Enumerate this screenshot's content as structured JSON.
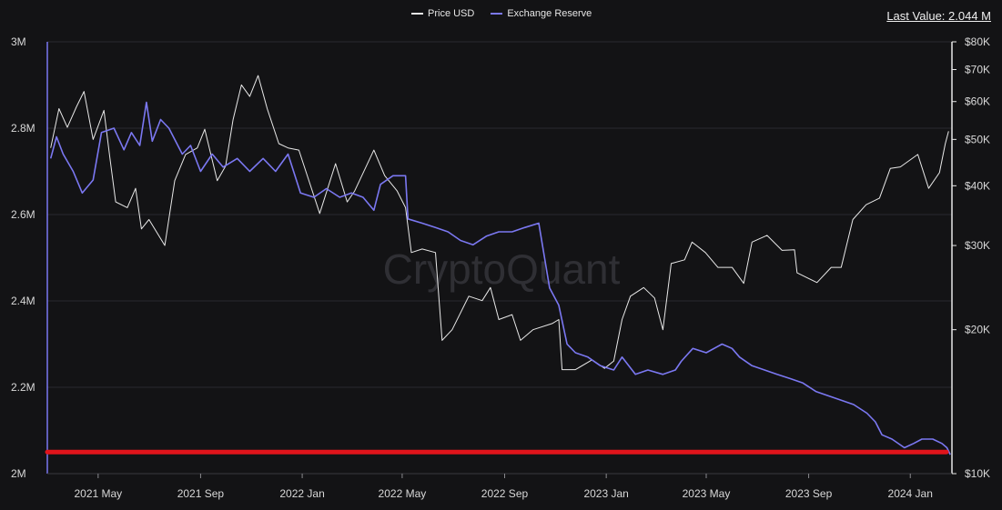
{
  "legend": [
    {
      "label": "Price USD",
      "color": "#e8e8e8"
    },
    {
      "label": "Exchange Reserve",
      "color": "#7b78f2"
    }
  ],
  "last_value": "Last Value: 2.044 M",
  "watermark": "CryptoQuant",
  "colors": {
    "background": "#131315",
    "grid": "#2a2a2e",
    "price": "#e8e8e8",
    "reserve": "#7b78f2",
    "highlight_line": "#e0141b"
  },
  "chart_data": {
    "type": "line",
    "x_tick_labels": [
      "2021 May",
      "2021 Sep",
      "2022 Jan",
      "2022 May",
      "2022 Sep",
      "2023 Jan",
      "2023 May",
      "2023 Sep",
      "2024 Jan"
    ],
    "x_tick_dates": [
      "2021-05-01",
      "2021-09-01",
      "2022-01-01",
      "2022-05-01",
      "2022-09-01",
      "2023-01-01",
      "2023-05-01",
      "2023-09-01",
      "2024-01-01"
    ],
    "xlim": [
      "2021-03-01",
      "2024-02-20"
    ],
    "y_left": {
      "label": "",
      "ylim": [
        2000000,
        3000000
      ],
      "tick_values": [
        2000000,
        2200000,
        2400000,
        2600000,
        2800000,
        3000000
      ],
      "tick_labels": [
        "2M",
        "2.2M",
        "2.4M",
        "2.6M",
        "2.8M",
        "3M"
      ]
    },
    "y_right": {
      "label": "",
      "scale": "log",
      "ylim": [
        10000,
        80000
      ],
      "tick_values": [
        10000,
        20000,
        30000,
        40000,
        50000,
        60000,
        70000,
        80000
      ],
      "tick_labels": [
        "$10K",
        "$20K",
        "$30K",
        "$40K",
        "$50K",
        "$60K",
        "$70K",
        "$80K"
      ]
    },
    "highlight_line_value": 2050000,
    "series": [
      {
        "name": "Price USD",
        "axis": "right",
        "points": [
          [
            "2021-03-05",
            48000
          ],
          [
            "2021-03-15",
            58000
          ],
          [
            "2021-03-25",
            53000
          ],
          [
            "2021-04-05",
            58500
          ],
          [
            "2021-04-14",
            63000
          ],
          [
            "2021-04-25",
            50000
          ],
          [
            "2021-05-08",
            57500
          ],
          [
            "2021-05-15",
            46000
          ],
          [
            "2021-05-22",
            37000
          ],
          [
            "2021-06-05",
            36000
          ],
          [
            "2021-06-15",
            39500
          ],
          [
            "2021-06-22",
            32500
          ],
          [
            "2021-07-01",
            34000
          ],
          [
            "2021-07-20",
            30000
          ],
          [
            "2021-08-01",
            41000
          ],
          [
            "2021-08-14",
            46500
          ],
          [
            "2021-08-28",
            48000
          ],
          [
            "2021-09-06",
            52500
          ],
          [
            "2021-09-21",
            41000
          ],
          [
            "2021-10-01",
            44000
          ],
          [
            "2021-10-10",
            55000
          ],
          [
            "2021-10-20",
            65000
          ],
          [
            "2021-10-30",
            61500
          ],
          [
            "2021-11-09",
            68000
          ],
          [
            "2021-11-20",
            58000
          ],
          [
            "2021-12-04",
            49000
          ],
          [
            "2021-12-15",
            48000
          ],
          [
            "2021-12-28",
            47500
          ],
          [
            "2022-01-08",
            41500
          ],
          [
            "2022-01-22",
            35000
          ],
          [
            "2022-02-10",
            44500
          ],
          [
            "2022-02-24",
            37000
          ],
          [
            "2022-03-05",
            39000
          ],
          [
            "2022-03-28",
            47500
          ],
          [
            "2022-04-10",
            42000
          ],
          [
            "2022-04-25",
            39000
          ],
          [
            "2022-05-05",
            36000
          ],
          [
            "2022-05-12",
            29000
          ],
          [
            "2022-05-25",
            29500
          ],
          [
            "2022-06-10",
            29000
          ],
          [
            "2022-06-18",
            19000
          ],
          [
            "2022-06-30",
            20000
          ],
          [
            "2022-07-20",
            23500
          ],
          [
            "2022-08-05",
            23000
          ],
          [
            "2022-08-15",
            24500
          ],
          [
            "2022-08-25",
            21000
          ],
          [
            "2022-09-10",
            21500
          ],
          [
            "2022-09-20",
            19000
          ],
          [
            "2022-10-05",
            20000
          ],
          [
            "2022-10-28",
            20600
          ],
          [
            "2022-11-05",
            21000
          ],
          [
            "2022-11-09",
            16500
          ],
          [
            "2022-11-25",
            16500
          ],
          [
            "2022-12-15",
            17300
          ],
          [
            "2022-12-30",
            16600
          ],
          [
            "2023-01-10",
            17200
          ],
          [
            "2023-01-20",
            21000
          ],
          [
            "2023-01-30",
            23500
          ],
          [
            "2023-02-15",
            24500
          ],
          [
            "2023-02-28",
            23300
          ],
          [
            "2023-03-10",
            20000
          ],
          [
            "2023-03-20",
            27500
          ],
          [
            "2023-04-05",
            28000
          ],
          [
            "2023-04-14",
            30500
          ],
          [
            "2023-04-30",
            29000
          ],
          [
            "2023-05-15",
            27000
          ],
          [
            "2023-06-01",
            27000
          ],
          [
            "2023-06-15",
            25000
          ],
          [
            "2023-06-25",
            30500
          ],
          [
            "2023-07-13",
            31500
          ],
          [
            "2023-07-31",
            29300
          ],
          [
            "2023-08-15",
            29400
          ],
          [
            "2023-08-18",
            26300
          ],
          [
            "2023-09-11",
            25100
          ],
          [
            "2023-09-28",
            27000
          ],
          [
            "2023-10-10",
            27000
          ],
          [
            "2023-10-24",
            34000
          ],
          [
            "2023-11-09",
            36500
          ],
          [
            "2023-11-25",
            37700
          ],
          [
            "2023-12-08",
            43500
          ],
          [
            "2023-12-20",
            43800
          ],
          [
            "2024-01-10",
            46500
          ],
          [
            "2024-01-23",
            39500
          ],
          [
            "2024-02-05",
            42600
          ],
          [
            "2024-02-12",
            49000
          ],
          [
            "2024-02-16",
            52000
          ]
        ]
      },
      {
        "name": "Exchange Reserve",
        "axis": "left",
        "points": [
          [
            "2021-03-05",
            2730000
          ],
          [
            "2021-03-12",
            2780000
          ],
          [
            "2021-03-20",
            2740000
          ],
          [
            "2021-04-01",
            2700000
          ],
          [
            "2021-04-12",
            2650000
          ],
          [
            "2021-04-25",
            2680000
          ],
          [
            "2021-05-05",
            2790000
          ],
          [
            "2021-05-20",
            2800000
          ],
          [
            "2021-06-01",
            2750000
          ],
          [
            "2021-06-10",
            2790000
          ],
          [
            "2021-06-20",
            2760000
          ],
          [
            "2021-06-28",
            2860000
          ],
          [
            "2021-07-05",
            2770000
          ],
          [
            "2021-07-15",
            2820000
          ],
          [
            "2021-07-25",
            2800000
          ],
          [
            "2021-08-10",
            2740000
          ],
          [
            "2021-08-20",
            2760000
          ],
          [
            "2021-09-01",
            2700000
          ],
          [
            "2021-09-15",
            2740000
          ],
          [
            "2021-09-28",
            2710000
          ],
          [
            "2021-10-15",
            2730000
          ],
          [
            "2021-10-30",
            2700000
          ],
          [
            "2021-11-15",
            2730000
          ],
          [
            "2021-11-30",
            2700000
          ],
          [
            "2021-12-15",
            2740000
          ],
          [
            "2021-12-30",
            2650000
          ],
          [
            "2022-01-15",
            2640000
          ],
          [
            "2022-01-30",
            2660000
          ],
          [
            "2022-02-15",
            2640000
          ],
          [
            "2022-03-01",
            2650000
          ],
          [
            "2022-03-15",
            2640000
          ],
          [
            "2022-03-28",
            2610000
          ],
          [
            "2022-04-05",
            2670000
          ],
          [
            "2022-04-20",
            2690000
          ],
          [
            "2022-05-05",
            2690000
          ],
          [
            "2022-05-08",
            2590000
          ],
          [
            "2022-05-25",
            2580000
          ],
          [
            "2022-06-10",
            2570000
          ],
          [
            "2022-06-25",
            2560000
          ],
          [
            "2022-07-10",
            2540000
          ],
          [
            "2022-07-25",
            2530000
          ],
          [
            "2022-08-10",
            2550000
          ],
          [
            "2022-08-25",
            2560000
          ],
          [
            "2022-09-10",
            2560000
          ],
          [
            "2022-09-25",
            2570000
          ],
          [
            "2022-10-12",
            2580000
          ],
          [
            "2022-10-25",
            2430000
          ],
          [
            "2022-11-05",
            2390000
          ],
          [
            "2022-11-15",
            2300000
          ],
          [
            "2022-11-25",
            2280000
          ],
          [
            "2022-12-10",
            2270000
          ],
          [
            "2022-12-25",
            2250000
          ],
          [
            "2023-01-10",
            2240000
          ],
          [
            "2023-01-20",
            2270000
          ],
          [
            "2023-02-05",
            2230000
          ],
          [
            "2023-02-20",
            2240000
          ],
          [
            "2023-03-10",
            2230000
          ],
          [
            "2023-03-25",
            2240000
          ],
          [
            "2023-04-01",
            2260000
          ],
          [
            "2023-04-15",
            2290000
          ],
          [
            "2023-05-01",
            2280000
          ],
          [
            "2023-05-20",
            2300000
          ],
          [
            "2023-06-01",
            2290000
          ],
          [
            "2023-06-10",
            2270000
          ],
          [
            "2023-06-25",
            2250000
          ],
          [
            "2023-07-10",
            2240000
          ],
          [
            "2023-07-25",
            2230000
          ],
          [
            "2023-08-10",
            2220000
          ],
          [
            "2023-08-25",
            2210000
          ],
          [
            "2023-09-10",
            2190000
          ],
          [
            "2023-09-25",
            2180000
          ],
          [
            "2023-10-10",
            2170000
          ],
          [
            "2023-10-25",
            2160000
          ],
          [
            "2023-11-10",
            2140000
          ],
          [
            "2023-11-20",
            2120000
          ],
          [
            "2023-11-28",
            2090000
          ],
          [
            "2023-12-10",
            2080000
          ],
          [
            "2023-12-25",
            2060000
          ],
          [
            "2024-01-05",
            2070000
          ],
          [
            "2024-01-15",
            2080000
          ],
          [
            "2024-01-28",
            2080000
          ],
          [
            "2024-02-08",
            2070000
          ],
          [
            "2024-02-14",
            2060000
          ],
          [
            "2024-02-18",
            2044000
          ]
        ]
      }
    ]
  }
}
